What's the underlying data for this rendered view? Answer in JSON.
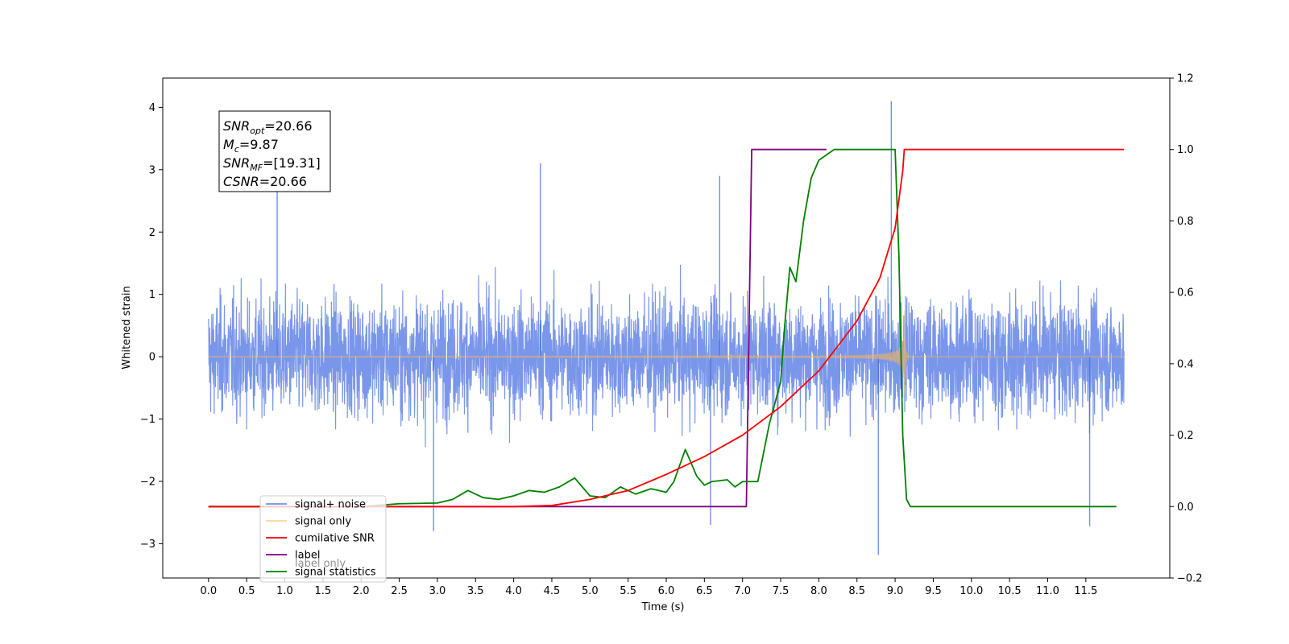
{
  "chart_data": {
    "type": "line",
    "xlabel": "Time (s)",
    "ylabel": "Whitened strain",
    "ylabel_right": "",
    "xlim": [
      -0.6,
      12.6
    ],
    "ylim": [
      -3.55,
      4.47
    ],
    "ylim_right": [
      -0.2,
      1.2
    ],
    "x_ticks": [
      "0.0",
      "0.5",
      "1.0",
      "1.5",
      "2.0",
      "2.5",
      "3.0",
      "3.5",
      "4.0",
      "4.5",
      "5.0",
      "5.5",
      "6.0",
      "6.5",
      "7.0",
      "7.5",
      "8.0",
      "8.5",
      "9.0",
      "9.5",
      "10.0",
      "10.5",
      "11.0",
      "11.5"
    ],
    "y_ticks": [
      "−3",
      "−2",
      "−1",
      "0",
      "1",
      "2",
      "3",
      "4"
    ],
    "y_ticks_right": [
      "−0.2",
      "0.0",
      "0.2",
      "0.4",
      "0.6",
      "0.8",
      "1.0",
      "1.2"
    ],
    "grid": false,
    "legend_location": "lower-left",
    "series": [
      {
        "name": "signal+ noise",
        "axis": "left",
        "color": "#4169e1",
        "description_kind": "noise",
        "x_range": [
          0,
          12.0
        ],
        "amplitude_rms": 0.75,
        "spikes": [
          [
            0.9,
            2.65
          ],
          [
            4.35,
            3.1
          ],
          [
            6.7,
            2.9
          ],
          [
            8.95,
            4.1
          ],
          [
            8.78,
            -3.18
          ],
          [
            6.58,
            -2.7
          ],
          [
            2.95,
            -2.8
          ],
          [
            11.55,
            -2.72
          ]
        ]
      },
      {
        "name": "signal only",
        "axis": "left",
        "color": "#ffb84d",
        "description_kind": "chirp",
        "x_range": [
          0,
          12.0
        ],
        "merger_time": 9.12
      },
      {
        "name": "cumilative SNR",
        "axis": "right",
        "color": "#ff0000",
        "x": [
          0,
          4.0,
          4.5,
          5.0,
          5.5,
          6.0,
          6.5,
          7.0,
          7.5,
          8.0,
          8.5,
          8.8,
          9.0,
          9.05,
          9.1,
          9.12,
          9.2,
          12.0
        ],
        "y": [
          0,
          0,
          0.003,
          0.02,
          0.045,
          0.09,
          0.14,
          0.2,
          0.28,
          0.38,
          0.52,
          0.64,
          0.78,
          0.86,
          0.94,
          1.0,
          1.0,
          1.0
        ]
      },
      {
        "name": "label",
        "axis": "right",
        "color": "#800080",
        "x": [
          0,
          7.05,
          7.12,
          8.1
        ],
        "y": [
          0,
          0,
          1.0,
          1.0
        ]
      },
      {
        "name": "label only",
        "hidden_in_plot": true,
        "color": "#ffffff"
      },
      {
        "name": "signal statistics",
        "axis": "right",
        "color": "#008000",
        "x": [
          0,
          2.0,
          2.5,
          3.0,
          3.2,
          3.4,
          3.6,
          3.8,
          4.0,
          4.2,
          4.4,
          4.6,
          4.8,
          5.0,
          5.2,
          5.4,
          5.6,
          5.8,
          6.0,
          6.1,
          6.25,
          6.4,
          6.5,
          6.6,
          6.8,
          6.9,
          7.0,
          7.1,
          7.2,
          7.35,
          7.5,
          7.55,
          7.62,
          7.7,
          7.8,
          7.9,
          8.0,
          8.2,
          8.5,
          9.0,
          9.05,
          9.1,
          9.15,
          9.2,
          11.9
        ],
        "y": [
          0,
          0,
          0.008,
          0.01,
          0.02,
          0.045,
          0.025,
          0.02,
          0.03,
          0.045,
          0.04,
          0.055,
          0.08,
          0.03,
          0.025,
          0.055,
          0.035,
          0.05,
          0.04,
          0.07,
          0.16,
          0.085,
          0.06,
          0.07,
          0.075,
          0.055,
          0.07,
          0.07,
          0.07,
          0.23,
          0.35,
          0.5,
          0.67,
          0.63,
          0.8,
          0.92,
          0.97,
          1.0,
          1.0,
          1.0,
          0.7,
          0.2,
          0.02,
          0.0,
          0.0
        ]
      }
    ],
    "annotation": {
      "lines": [
        {
          "label": "SNR",
          "sub": "opt",
          "value": "=20.66"
        },
        {
          "label": "M",
          "sub": "c",
          "value": "=9.87"
        },
        {
          "label": "SNR",
          "sub": "MF",
          "value": "=[19.31]"
        },
        {
          "label": "CSNR",
          "sub": "",
          "value": "=20.66"
        }
      ]
    }
  }
}
